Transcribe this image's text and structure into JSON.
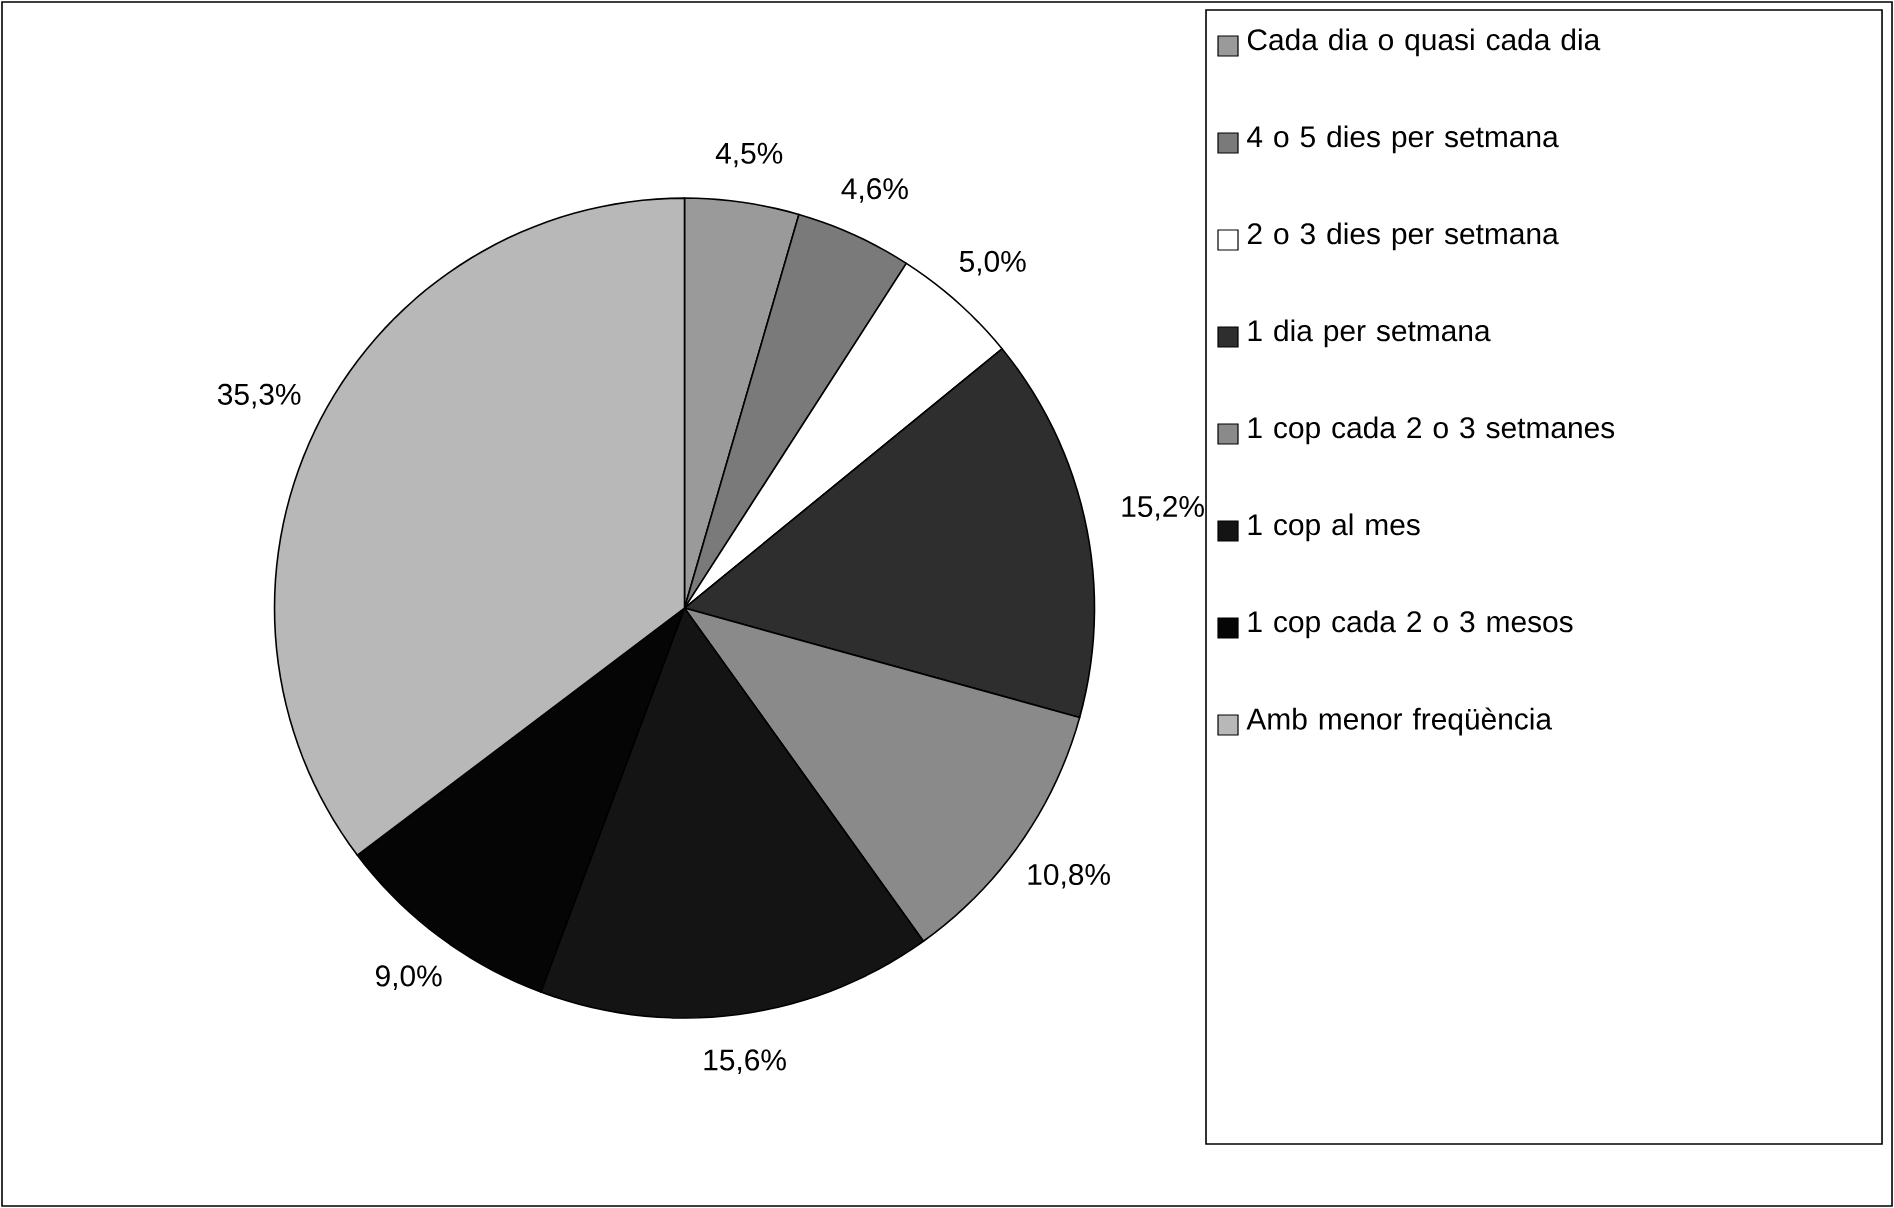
{
  "chart_data": {
    "type": "pie",
    "categories": [
      "Cada dia o quasi cada dia",
      "4 o 5 dies per setmana",
      "2 o 3 dies per setmana",
      "1 dia per setmana",
      "1 cop cada 2 o 3 setmanes",
      "1 cop al mes",
      "1 cop cada 2 o 3 mesos",
      "Amb menor freqüència"
    ],
    "values": [
      4.5,
      4.6,
      5.0,
      15.2,
      10.8,
      15.6,
      9.0,
      35.3
    ],
    "value_labels": [
      "4,5%",
      "4,6%",
      "5,0%",
      "15,2%",
      "10,8%",
      "15,6%",
      "9,0%",
      "35,3%"
    ],
    "colors": [
      "#9a9a9a",
      "#7a7a7a",
      "#ffffff",
      "#2e2e2e",
      "#8a8a8a",
      "#141414",
      "#050505",
      "#b8b8b8"
    ],
    "legend": "right"
  }
}
